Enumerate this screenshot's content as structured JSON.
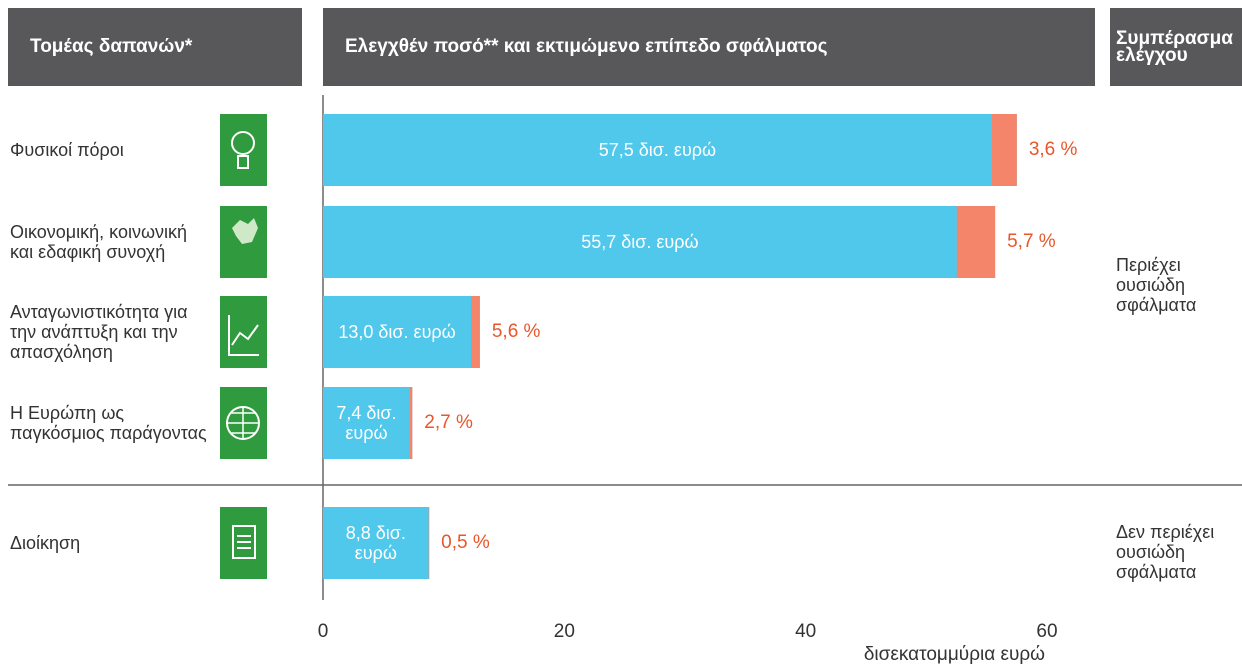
{
  "header": {
    "columns": [
      "Τομέας δαπανών*",
      "Ελεγχθέν ποσό** και εκτιμώμενο επίπεδο σφάλματος",
      "Συμπέρασμα ελέγχου"
    ]
  },
  "chart_data": {
    "type": "bar",
    "orientation": "horizontal",
    "categories": [
      "Φυσικοί πόροι",
      "Οικονομική, κοινωνική και εδαφική συνοχή",
      "Ανταγωνιστικότητα για την ανάπτυξη και την απασχόληση",
      "Η Ευρώπη ως παγκόσμιος παράγοντας",
      "Διοίκηση"
    ],
    "values": [
      57.5,
      55.7,
      13.0,
      7.4,
      8.8
    ],
    "value_labels": [
      "57,5 δισ. ευρώ",
      "55,7 δισ. ευρώ",
      "13,0 δισ. ευρώ",
      "7,4 δισ. ευρώ",
      "8,8 δισ. ευρώ"
    ],
    "error_rates": [
      3.6,
      5.7,
      5.6,
      2.7,
      0.5
    ],
    "error_labels": [
      "3,6 %",
      "5,7 %",
      "5,6 %",
      "2,7 %",
      "0,5 %"
    ],
    "color": "#4fc8ec",
    "error_color": "#f4856a",
    "xlim": [
      0,
      60
    ],
    "xticks": [
      0,
      20,
      40,
      60
    ],
    "x_label": "δισεκατομμύρια ευρώ"
  },
  "conclusions": [
    "Περιέχει ουσιώδη σφάλματα",
    "Δεν περιέχει ουσιώδη σφάλματα"
  ]
}
